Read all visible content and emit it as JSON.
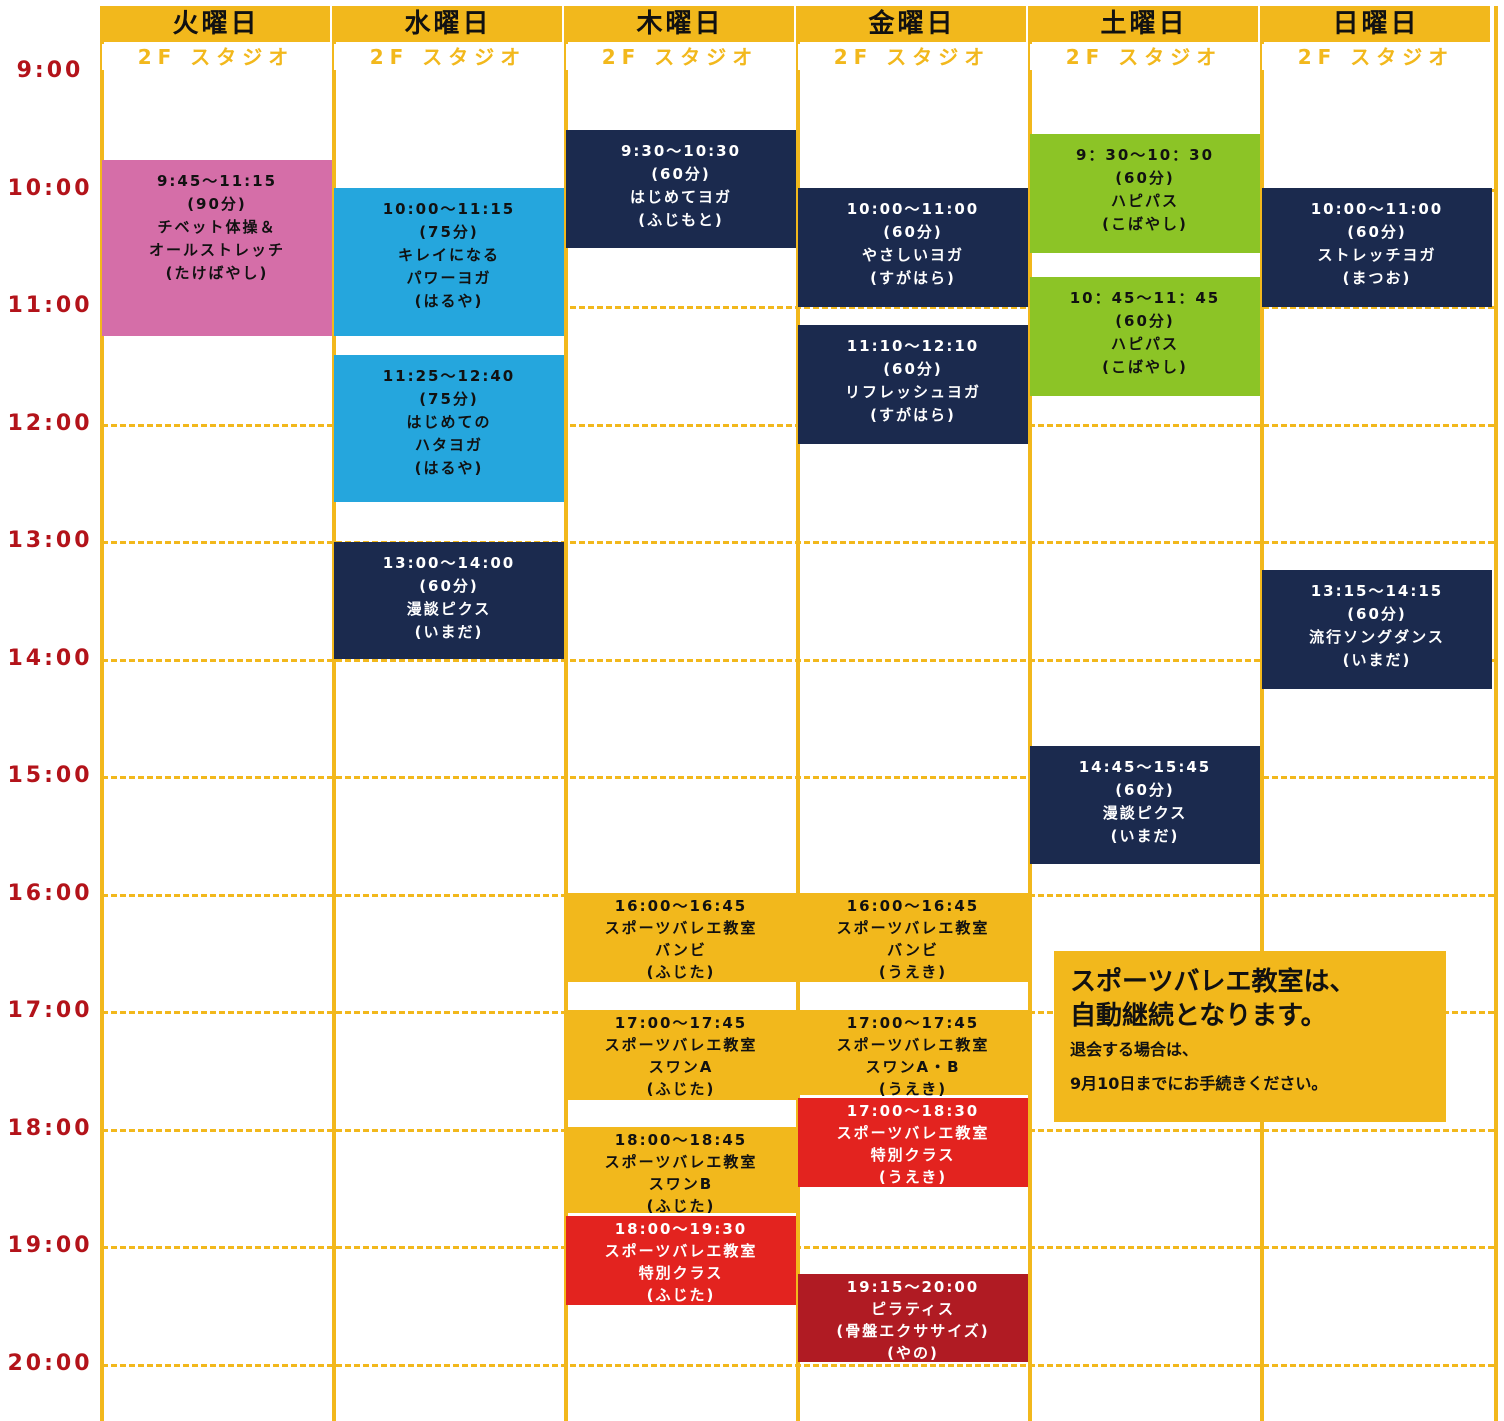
{
  "days": [
    {
      "name": "火曜日",
      "room": "2F スタジオ",
      "classes": [
        {
          "lines": [
            "9:45～11:15",
            "(90分)",
            "チベット体操＆",
            "オールストレッチ",
            "(たけばやし)"
          ]
        }
      ]
    },
    {
      "name": "水曜日",
      "room": "2F スタジオ",
      "classes": [
        {
          "lines": [
            "10:00～11:15",
            "(75分)",
            "キレイになる",
            "パワーヨガ",
            "(はるや)"
          ]
        },
        {
          "lines": [
            "11:25～12:40",
            "(75分)",
            "はじめての",
            "ハタヨガ",
            "(はるや)"
          ]
        },
        {
          "lines": [
            "13:00～14:00",
            "(60分)",
            "漫談ピクス",
            "(いまだ)"
          ]
        }
      ]
    },
    {
      "name": "木曜日",
      "room": "2F スタジオ",
      "classes": [
        {
          "lines": [
            "9:30～10:30",
            "(60分)",
            "はじめてヨガ",
            "(ふじもと)"
          ]
        },
        {
          "lines": [
            "16:00～16:45",
            "スポーツバレエ教室",
            "バンビ",
            "(ふじた)"
          ]
        },
        {
          "lines": [
            "17:00～17:45",
            "スポーツバレエ教室",
            "スワンA",
            "(ふじた)"
          ]
        },
        {
          "lines": [
            "18:00～18:45",
            "スポーツバレエ教室",
            "スワンB",
            "(ふじた)"
          ]
        },
        {
          "lines": [
            "18:00～19:30",
            "スポーツバレエ教室",
            "特別クラス",
            "(ふじた)"
          ]
        }
      ]
    },
    {
      "name": "金曜日",
      "room": "2F スタジオ",
      "classes": [
        {
          "lines": [
            "10:00～11:00",
            "(60分)",
            "やさしいヨガ",
            "(すがはら)"
          ]
        },
        {
          "lines": [
            "11:10～12:10",
            "(60分)",
            "リフレッシュヨガ",
            "(すがはら)"
          ]
        },
        {
          "lines": [
            "16:00～16:45",
            "スポーツバレエ教室",
            "バンビ",
            "(うえき)"
          ]
        },
        {
          "lines": [
            "17:00～17:45",
            "スポーツバレエ教室",
            "スワンA・B",
            "(うえき)"
          ]
        },
        {
          "lines": [
            "17:00～18:30",
            "スポーツバレエ教室",
            "特別クラス",
            "(うえき)"
          ]
        },
        {
          "lines": [
            "19:15～20:00",
            "ピラティス",
            "(骨盤エクササイズ)",
            "(やの)"
          ]
        }
      ]
    },
    {
      "name": "土曜日",
      "room": "2F スタジオ",
      "classes": [
        {
          "lines": [
            "9：30～10：30",
            "(60分)",
            "ハピパス",
            "(こばやし)"
          ]
        },
        {
          "lines": [
            "10：45～11：45",
            "(60分)",
            "ハピパス",
            "(こばやし)"
          ]
        },
        {
          "lines": [
            "14:45～15:45",
            "(60分)",
            "漫談ピクス",
            "(いまだ)"
          ]
        }
      ]
    },
    {
      "name": "日曜日",
      "room": "2F スタジオ",
      "classes": [
        {
          "lines": [
            "10:00～11:00",
            "(60分)",
            "ストレッチヨガ",
            "(まつお)"
          ]
        },
        {
          "lines": [
            "13:15～14:15",
            "(60分)",
            "流行ソングダンス",
            "(いまだ)"
          ]
        }
      ]
    }
  ],
  "times": [
    "9:00",
    "10:00",
    "11:00",
    "12:00",
    "13:00",
    "14:00",
    "15:00",
    "16:00",
    "17:00",
    "18:00",
    "19:00",
    "20:00"
  ],
  "notice": {
    "heading": [
      "スポーツバレエ教室は、",
      "自動継続となります。"
    ],
    "body": [
      "退会する場合は、",
      "9月10日までにお手続きください。"
    ]
  }
}
